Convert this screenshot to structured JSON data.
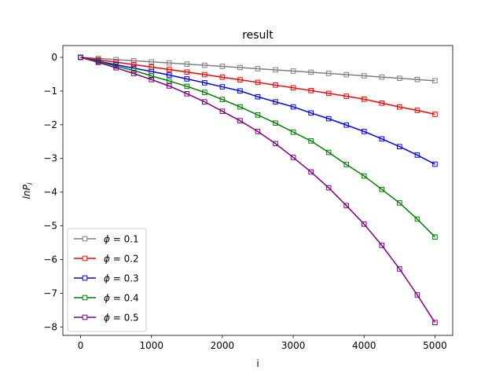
{
  "chart_data": {
    "type": "line",
    "title": "result",
    "xlabel": "i",
    "ylabel_base": "lnP",
    "ylabel_sub": "i",
    "xlim": [
      -250,
      5250
    ],
    "ylim": [
      -8.25,
      0.35
    ],
    "xticks": [
      0,
      1000,
      2000,
      3000,
      4000,
      5000
    ],
    "xtick_labels": [
      "0",
      "1000",
      "2000",
      "3000",
      "4000",
      "5000"
    ],
    "yticks": [
      0,
      -1,
      -2,
      -3,
      -4,
      -5,
      -6,
      -7,
      -8
    ],
    "ytick_labels": [
      "0",
      "−1",
      "−2",
      "−3",
      "−4",
      "−5",
      "−6",
      "−7",
      "−8"
    ],
    "grid": false,
    "legend_position": "lower-left",
    "marker": "square-open",
    "x": [
      0,
      250,
      500,
      750,
      1000,
      1250,
      1500,
      1750,
      2000,
      2250,
      2500,
      2750,
      3000,
      3250,
      3500,
      3750,
      4000,
      4250,
      4500,
      4750,
      5000
    ],
    "series": [
      {
        "name": "ϕ = 0.1",
        "legend_symbol": "ϕ",
        "legend_value": "= 0.1",
        "color": "#808080",
        "values": [
          0,
          -0.033,
          -0.066,
          -0.099,
          -0.133,
          -0.167,
          -0.2,
          -0.234,
          -0.268,
          -0.302,
          -0.337,
          -0.372,
          -0.406,
          -0.442,
          -0.477,
          -0.513,
          -0.548,
          -0.585,
          -0.621,
          -0.658,
          -0.695
        ]
      },
      {
        "name": "ϕ = 0.2",
        "legend_symbol": "ϕ",
        "legend_value": "= 0.2",
        "color": "#ff0000",
        "values": [
          0,
          -0.072,
          -0.143,
          -0.215,
          -0.288,
          -0.362,
          -0.437,
          -0.512,
          -0.588,
          -0.666,
          -0.744,
          -0.823,
          -0.904,
          -0.986,
          -1.069,
          -1.154,
          -1.24,
          -1.358,
          -1.473,
          -1.573,
          -1.69
        ]
      },
      {
        "name": "ϕ = 0.3",
        "legend_symbol": "ϕ",
        "legend_value": "= 0.3",
        "color": "#0000ff",
        "values": [
          0,
          -0.11,
          -0.22,
          -0.32,
          -0.42,
          -0.525,
          -0.64,
          -0.755,
          -0.875,
          -0.995,
          -1.17,
          -1.32,
          -1.47,
          -1.65,
          -1.82,
          -2.01,
          -2.2,
          -2.42,
          -2.65,
          -2.9,
          -3.17
        ]
      },
      {
        "name": "ϕ = 0.4",
        "legend_symbol": "ϕ",
        "legend_value": "= 0.4",
        "color": "#008000",
        "values": [
          0,
          -0.12,
          -0.26,
          -0.39,
          -0.55,
          -0.7,
          -0.86,
          -1.04,
          -1.25,
          -1.47,
          -1.71,
          -1.95,
          -2.22,
          -2.48,
          -2.82,
          -3.18,
          -3.52,
          -3.92,
          -4.32,
          -4.8,
          -5.33
        ]
      },
      {
        "name": "ϕ = 0.5",
        "legend_symbol": "ϕ",
        "legend_value": "= 0.5",
        "color": "#800080",
        "values": [
          0,
          -0.15,
          -0.31,
          -0.48,
          -0.66,
          -0.85,
          -1.08,
          -1.32,
          -1.6,
          -1.88,
          -2.2,
          -2.56,
          -2.97,
          -3.4,
          -3.87,
          -4.4,
          -4.95,
          -5.58,
          -6.28,
          -7.05,
          -7.87
        ]
      }
    ]
  }
}
